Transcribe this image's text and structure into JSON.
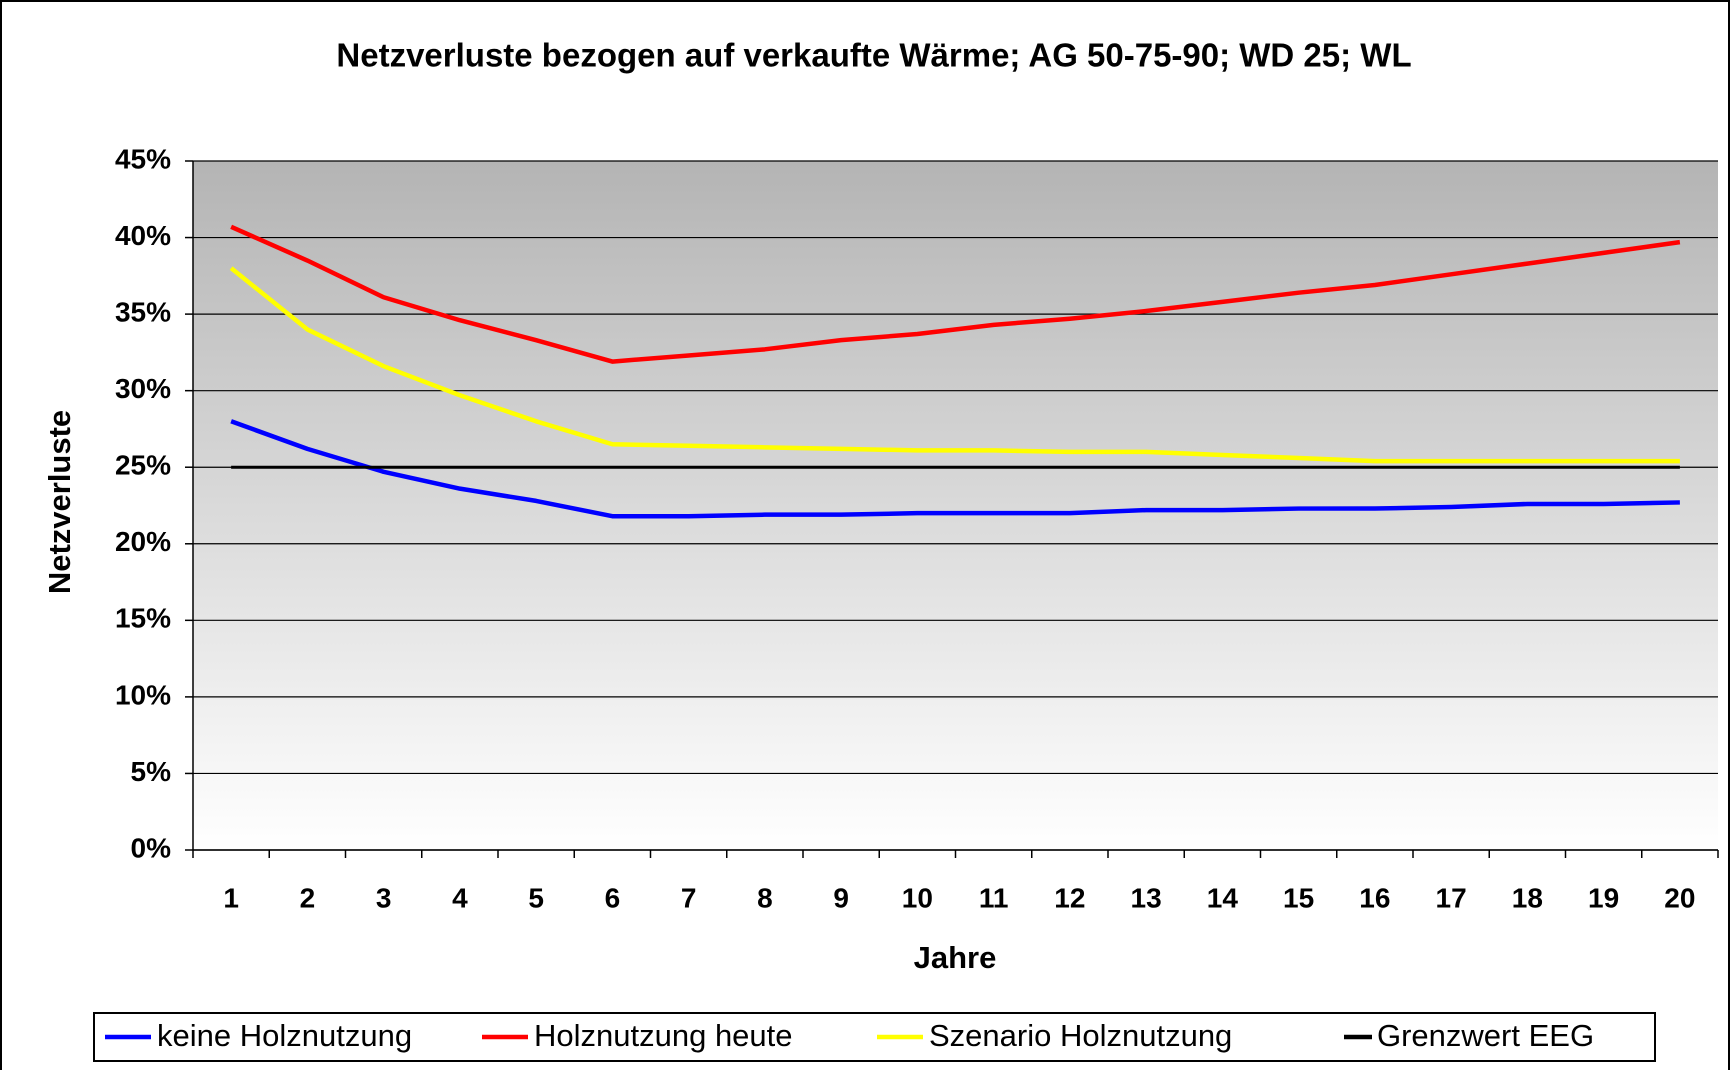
{
  "chart_data": {
    "type": "line",
    "title": "Netzverluste bezogen auf verkaufte Wärme; AG 50-75-90; WD 25; WL",
    "x_label": "Jahre",
    "y_label": "Netzverluste",
    "categories": [
      "1",
      "2",
      "3",
      "4",
      "5",
      "6",
      "7",
      "8",
      "9",
      "10",
      "11",
      "12",
      "13",
      "14",
      "15",
      "16",
      "17",
      "18",
      "19",
      "20"
    ],
    "series": [
      {
        "name": "keine Holznutzung",
        "color": "#0000ff",
        "values": [
          28.0,
          26.2,
          24.7,
          23.6,
          22.8,
          21.8,
          21.8,
          21.9,
          21.9,
          22.0,
          22.0,
          22.0,
          22.2,
          22.2,
          22.3,
          22.3,
          22.4,
          22.6,
          22.6,
          22.7
        ]
      },
      {
        "name": "Holznutzung heute",
        "color": "#ff0000",
        "values": [
          40.7,
          38.5,
          36.1,
          34.6,
          33.3,
          31.9,
          32.3,
          32.7,
          33.3,
          33.7,
          34.3,
          34.7,
          35.2,
          35.8,
          36.4,
          36.9,
          37.6,
          38.3,
          39.0,
          39.7
        ]
      },
      {
        "name": "Szenario Holznutzung",
        "color": "#ffff00",
        "values": [
          38.0,
          34.0,
          31.6,
          29.7,
          28.0,
          26.5,
          26.4,
          26.3,
          26.2,
          26.1,
          26.1,
          26.0,
          26.0,
          25.8,
          25.6,
          25.4,
          25.4,
          25.4,
          25.4,
          25.4
        ]
      },
      {
        "name": "Grenzwert EEG",
        "color": "#000000",
        "values": [
          25,
          25,
          25,
          25,
          25,
          25,
          25,
          25,
          25,
          25,
          25,
          25,
          25,
          25,
          25,
          25,
          25,
          25,
          25,
          25
        ]
      }
    ],
    "ylim": [
      0,
      45
    ],
    "yticks": [
      {
        "value": 0,
        "label": "0%"
      },
      {
        "value": 5,
        "label": "5%"
      },
      {
        "value": 10,
        "label": "10%"
      },
      {
        "value": 15,
        "label": "15%"
      },
      {
        "value": 20,
        "label": "20%"
      },
      {
        "value": 25,
        "label": "25%"
      },
      {
        "value": 30,
        "label": "30%"
      },
      {
        "value": 35,
        "label": "35%"
      },
      {
        "value": 40,
        "label": "40%"
      },
      {
        "value": 45,
        "label": "45%"
      }
    ],
    "grid": true,
    "legend": "bottom"
  }
}
